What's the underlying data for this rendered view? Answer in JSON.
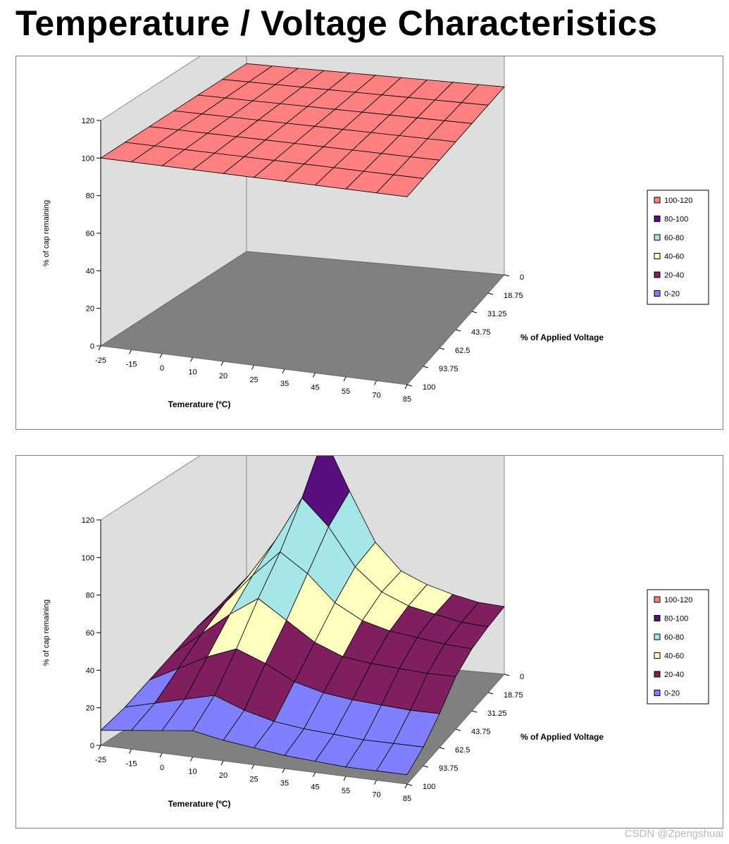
{
  "title": "Temperature / Voltage Characteristics",
  "watermark": "CSDN @Zpengshuai",
  "colors": {
    "b100_120": "#ff8080",
    "b80_100": "#5a0f7f",
    "b60_80": "#a6e6e6",
    "b40_60": "#ffffc0",
    "b20_40": "#7f1f5f",
    "b0_20": "#8080ff",
    "wall": "#dedede",
    "floor": "#808080"
  },
  "chart_data": [
    {
      "type": "surface",
      "xlabel": "Temerature (ºC)",
      "ylabel": "% of cap remaining",
      "zlabel": "% of Applied Voltage",
      "x_ticks": [
        "-25",
        "-15",
        "0",
        "10",
        "20",
        "25",
        "35",
        "45",
        "55",
        "70",
        "85"
      ],
      "depth_ticks": [
        "100",
        "93.75",
        "62.5",
        "43.75",
        "31.25",
        "18.75",
        "0"
      ],
      "y_ticks": [
        "0",
        "20",
        "40",
        "60",
        "80",
        "100",
        "120"
      ],
      "ylim": [
        0,
        120
      ],
      "legend": [
        "100-120",
        "80-100",
        "60-80",
        "40-60",
        "20-40",
        "0-20"
      ],
      "legend_position": "right",
      "grid": false,
      "values": [
        [
          100,
          100,
          100,
          100,
          100,
          100,
          100,
          100,
          100,
          100,
          100
        ],
        [
          100,
          100,
          100,
          100,
          100,
          100,
          100,
          100,
          100,
          100,
          100
        ],
        [
          100,
          100,
          100,
          100,
          100,
          100,
          100,
          100,
          100,
          100,
          100
        ],
        [
          100,
          100,
          100,
          100,
          100,
          100,
          100,
          100,
          100,
          100,
          100
        ],
        [
          100,
          100,
          100,
          100,
          100,
          100,
          100,
          100,
          100,
          100,
          100
        ],
        [
          100,
          100,
          100,
          100,
          100,
          100,
          100,
          100,
          100,
          100,
          100
        ],
        [
          100,
          100,
          100,
          100,
          100,
          100,
          100,
          100,
          100,
          100,
          100
        ]
      ]
    },
    {
      "type": "surface",
      "xlabel": "Temerature (ºC)",
      "ylabel": "% of cap remaining",
      "zlabel": "% of Applied Voltage",
      "x_ticks": [
        "-25",
        "-15",
        "0",
        "10",
        "20",
        "25",
        "35",
        "45",
        "55",
        "70",
        "85"
      ],
      "depth_ticks": [
        "100",
        "93.75",
        "62.5",
        "43.75",
        "31.25",
        "18.75",
        "0"
      ],
      "y_ticks": [
        "0",
        "20",
        "40",
        "60",
        "80",
        "100",
        "120"
      ],
      "ylim": [
        0,
        120
      ],
      "legend": [
        "100-120",
        "80-100",
        "60-80",
        "40-60",
        "20-40",
        "0-20"
      ],
      "legend_position": "right",
      "grid": false,
      "values": [
        [
          8,
          10,
          12,
          14,
          11,
          9,
          7,
          6,
          5,
          5,
          5
        ],
        [
          12,
          16,
          20,
          24,
          18,
          14,
          12,
          11,
          10,
          10,
          10
        ],
        [
          18,
          26,
          34,
          40,
          34,
          26,
          22,
          20,
          19,
          18,
          18
        ],
        [
          24,
          36,
          48,
          58,
          48,
          38,
          32,
          30,
          29,
          28,
          28
        ],
        [
          30,
          44,
          60,
          74,
          64,
          50,
          42,
          38,
          36,
          34,
          33
        ],
        [
          34,
          50,
          70,
          94,
          80,
          60,
          48,
          42,
          39,
          36,
          35
        ],
        [
          36,
          54,
          78,
          118,
          90,
          64,
          50,
          44,
          40,
          37,
          36
        ]
      ]
    }
  ]
}
